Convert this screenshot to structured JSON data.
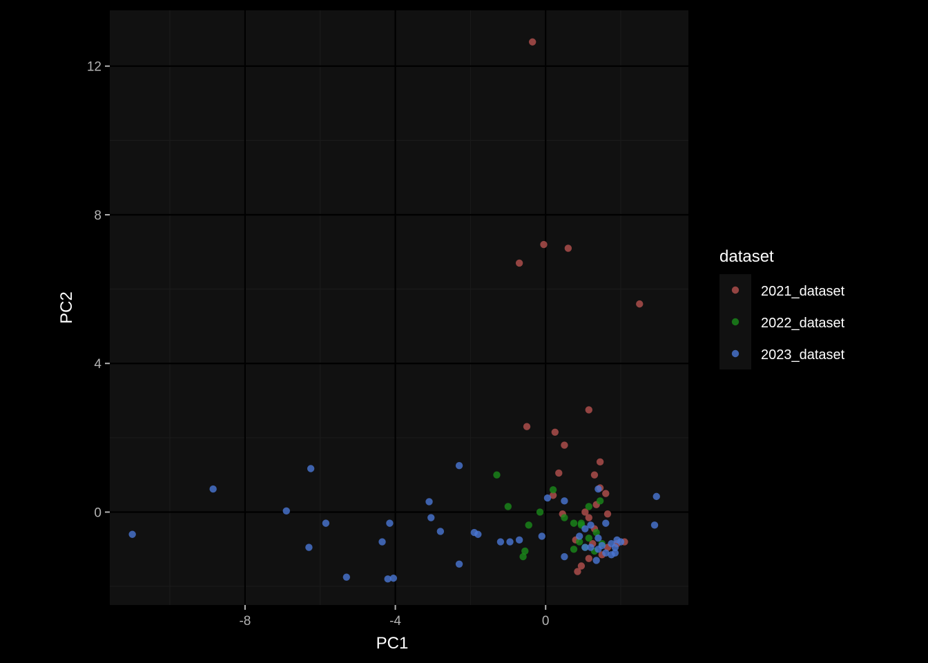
{
  "chart_data": {
    "type": "scatter",
    "xlabel": "PC1",
    "ylabel": "PC2",
    "xlim": [
      -11.6,
      3.8
    ],
    "ylim": [
      -2.5,
      13.5
    ],
    "x_ticks": [
      -8,
      -4,
      0
    ],
    "y_ticks": [
      0,
      4,
      8,
      12
    ],
    "grid": true,
    "legend": {
      "title": "dataset",
      "placement": "right"
    },
    "colors": {
      "panel": "#111111",
      "background": "#000000",
      "grid_major": "#000000",
      "grid_minor": "#1b1b1b"
    },
    "series": [
      {
        "name": "2021_dataset",
        "color": "#b5514f",
        "points": [
          [
            -0.35,
            12.65
          ],
          [
            -0.05,
            7.2
          ],
          [
            0.6,
            7.1
          ],
          [
            -0.7,
            6.7
          ],
          [
            2.5,
            5.6
          ],
          [
            1.15,
            2.75
          ],
          [
            -0.5,
            2.3
          ],
          [
            0.25,
            2.15
          ],
          [
            0.5,
            1.8
          ],
          [
            1.45,
            1.35
          ],
          [
            0.35,
            1.05
          ],
          [
            1.3,
            1.0
          ],
          [
            1.45,
            0.65
          ],
          [
            1.6,
            0.5
          ],
          [
            0.2,
            0.45
          ],
          [
            1.35,
            0.2
          ],
          [
            0.45,
            -0.05
          ],
          [
            1.05,
            0.0
          ],
          [
            1.15,
            -0.15
          ],
          [
            1.65,
            -0.05
          ],
          [
            1.3,
            -0.45
          ],
          [
            0.8,
            -0.75
          ],
          [
            1.65,
            -0.95
          ],
          [
            2.1,
            -0.8
          ],
          [
            1.5,
            -1.15
          ],
          [
            1.15,
            -1.25
          ],
          [
            0.95,
            -1.45
          ],
          [
            0.85,
            -1.6
          ],
          [
            1.9,
            -0.85
          ],
          [
            1.25,
            -0.85
          ]
        ]
      },
      {
        "name": "2022_dataset",
        "color": "#1a8a1a",
        "points": [
          [
            -1.3,
            1.0
          ],
          [
            0.2,
            0.6
          ],
          [
            1.45,
            0.3
          ],
          [
            -1.0,
            0.15
          ],
          [
            1.15,
            0.15
          ],
          [
            -0.15,
            0.0
          ],
          [
            0.5,
            -0.15
          ],
          [
            -0.45,
            -0.35
          ],
          [
            0.75,
            -0.3
          ],
          [
            0.95,
            -0.35
          ],
          [
            1.35,
            -0.55
          ],
          [
            1.15,
            -0.7
          ],
          [
            0.9,
            -0.8
          ],
          [
            1.5,
            -0.85
          ],
          [
            1.05,
            -0.95
          ],
          [
            0.75,
            -1.0
          ],
          [
            -0.55,
            -1.05
          ],
          [
            -0.6,
            -1.2
          ],
          [
            1.3,
            -1.05
          ],
          [
            0.95,
            -0.3
          ]
        ]
      },
      {
        "name": "2023_dataset",
        "color": "#4a77d4",
        "points": [
          [
            -11.0,
            -0.6
          ],
          [
            -8.85,
            0.62
          ],
          [
            -6.9,
            0.03
          ],
          [
            -6.25,
            1.17
          ],
          [
            -5.85,
            -0.3
          ],
          [
            -6.3,
            -0.95
          ],
          [
            -5.3,
            -1.75
          ],
          [
            -4.2,
            -1.8
          ],
          [
            -4.05,
            -1.78
          ],
          [
            -4.35,
            -0.8
          ],
          [
            -4.15,
            -0.3
          ],
          [
            -3.1,
            0.28
          ],
          [
            -3.05,
            -0.15
          ],
          [
            -2.8,
            -0.52
          ],
          [
            -2.3,
            1.25
          ],
          [
            -2.3,
            -1.4
          ],
          [
            -1.9,
            -0.55
          ],
          [
            -1.8,
            -0.6
          ],
          [
            -1.2,
            -0.8
          ],
          [
            -0.95,
            -0.8
          ],
          [
            -0.7,
            -0.75
          ],
          [
            -0.1,
            -0.65
          ],
          [
            0.05,
            0.38
          ],
          [
            0.5,
            0.3
          ],
          [
            0.5,
            -1.2
          ],
          [
            1.4,
            0.62
          ],
          [
            2.9,
            -0.35
          ],
          [
            2.95,
            0.42
          ],
          [
            1.6,
            -0.3
          ],
          [
            1.2,
            -0.35
          ],
          [
            0.9,
            -0.65
          ],
          [
            1.05,
            -0.45
          ],
          [
            1.4,
            -0.7
          ],
          [
            1.75,
            -0.85
          ],
          [
            1.9,
            -0.75
          ],
          [
            2.0,
            -0.8
          ],
          [
            1.85,
            -0.95
          ],
          [
            1.6,
            -1.1
          ],
          [
            1.75,
            -1.15
          ],
          [
            1.85,
            -1.1
          ],
          [
            1.35,
            -1.3
          ],
          [
            1.05,
            -0.95
          ],
          [
            1.2,
            -0.95
          ],
          [
            1.5,
            -0.9
          ],
          [
            1.4,
            -1.0
          ]
        ]
      }
    ]
  }
}
